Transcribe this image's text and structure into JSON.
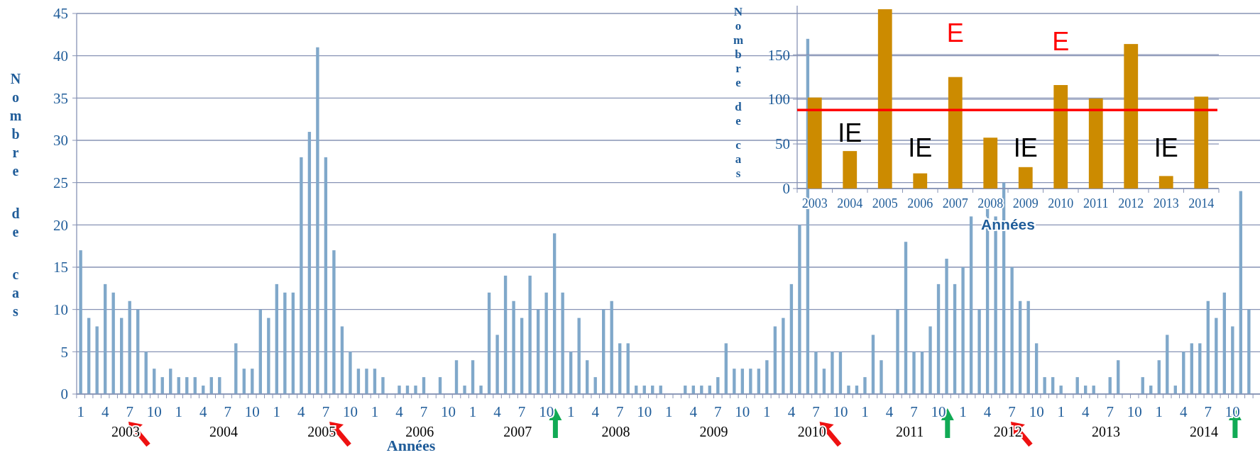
{
  "chart_data": [
    {
      "type": "bar",
      "xlabel": "Années",
      "ylabel": "Nombre de cas",
      "color": "#80a8ca",
      "grid": "y",
      "ylim": [
        0,
        45
      ],
      "yticks": [
        0,
        5,
        10,
        15,
        20,
        25,
        30,
        35,
        40,
        45
      ],
      "categories": [
        "1",
        null,
        null,
        "4",
        null,
        null,
        "7",
        null,
        null,
        "10",
        null,
        null,
        "1",
        null,
        null,
        "4",
        null,
        null,
        "7",
        null,
        null,
        "10",
        null,
        null,
        "1",
        null,
        null,
        "4",
        null,
        null,
        "7",
        null,
        null,
        "10",
        null,
        null,
        "1",
        null,
        null,
        "4",
        null,
        null,
        "7",
        null,
        null,
        "10",
        null,
        null,
        "1",
        null,
        null,
        "4",
        null,
        null,
        "7",
        null,
        null,
        "10",
        null,
        null,
        "1",
        null,
        null,
        "4",
        null,
        null,
        "7",
        null,
        null,
        "10",
        null,
        null,
        "1",
        null,
        null,
        "4",
        null,
        null,
        "7",
        null,
        null,
        "10",
        null,
        null,
        "1",
        null,
        null,
        "4",
        null,
        null,
        "7",
        null,
        null,
        "10",
        null,
        null,
        "1",
        null,
        null,
        "4",
        null,
        null,
        "7",
        null,
        null,
        "10",
        null,
        null,
        "1",
        null,
        null,
        "4",
        null,
        null,
        "7",
        null,
        null,
        "10",
        null,
        null,
        "1",
        null,
        null,
        "4",
        null,
        null,
        "7",
        null,
        null,
        "10",
        null,
        null,
        "1",
        null,
        null,
        "4",
        null,
        null,
        "7",
        null,
        null,
        "10",
        null,
        null
      ],
      "values": [
        17,
        9,
        8,
        13,
        12,
        9,
        11,
        10,
        5,
        3,
        2,
        3,
        2,
        2,
        2,
        1,
        2,
        2,
        0,
        6,
        3,
        3,
        10,
        9,
        13,
        12,
        12,
        28,
        31,
        41,
        28,
        17,
        8,
        5,
        3,
        3,
        3,
        2,
        0,
        1,
        1,
        1,
        2,
        0,
        2,
        0,
        4,
        1,
        4,
        1,
        12,
        7,
        14,
        11,
        9,
        14,
        10,
        12,
        19,
        12,
        5,
        9,
        4,
        2,
        10,
        11,
        6,
        6,
        1,
        1,
        1,
        1,
        0,
        0,
        1,
        1,
        1,
        1,
        2,
        6,
        3,
        3,
        3,
        3,
        4,
        8,
        9,
        13,
        20,
        42,
        5,
        3,
        5,
        5,
        1,
        1,
        2,
        7,
        4,
        0,
        10,
        18,
        5,
        5,
        8,
        13,
        16,
        13,
        15,
        21,
        10,
        23,
        21,
        25,
        15,
        11,
        11,
        6,
        2,
        2,
        1,
        0,
        2,
        1,
        1,
        0,
        2,
        4,
        0,
        0,
        2,
        1,
        4,
        7,
        1,
        5,
        6,
        6,
        11,
        9,
        12,
        8,
        24,
        10
      ],
      "annotations": [
        "2003",
        "2004",
        "2005",
        "2006",
        "2007",
        "2008",
        "2009",
        "2010",
        "2011",
        "2012",
        "2013",
        "2014"
      ]
    },
    {
      "type": "bar",
      "xlabel": "Années",
      "ylabel": "Nombre de cas",
      "color": "#cc8b00",
      "grid": "y",
      "ylim": [
        0,
        205
      ],
      "yticks": [
        0,
        50,
        100,
        150
      ],
      "categories": [
        "2003",
        "2004",
        "2005",
        "2006",
        "2007",
        "2008",
        "2009",
        "2010",
        "2011",
        "2012",
        "2013",
        "2014"
      ],
      "values": [
        102,
        42,
        201,
        17,
        125,
        57,
        24,
        116,
        101,
        162,
        14,
        103
      ],
      "ref_lines": [
        {
          "axis": "y",
          "value": 88,
          "color": "#ff0000"
        }
      ],
      "annotations": [
        "IE",
        "IE",
        "E",
        "IE",
        "E",
        "IE"
      ]
    }
  ]
}
